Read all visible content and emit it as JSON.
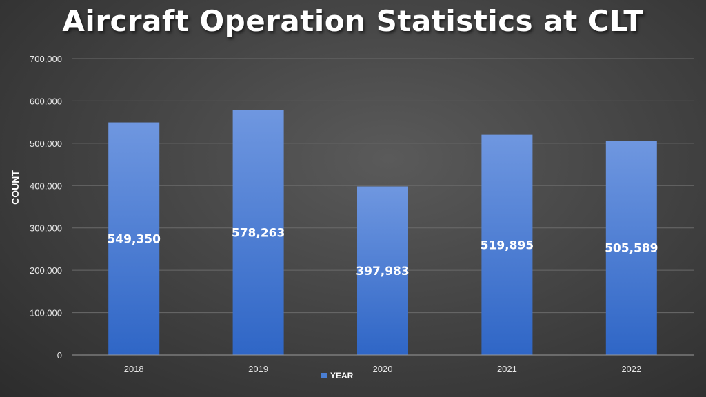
{
  "chart_data": {
    "type": "bar",
    "title": "Aircraft Operation Statistics at CLT",
    "categories": [
      "2018",
      "2019",
      "2020",
      "2021",
      "2022"
    ],
    "series": [
      {
        "name": "YEAR",
        "values": [
          549350,
          578263,
          397983,
          519895,
          505589
        ]
      }
    ],
    "data_labels": [
      "549,350",
      "578,263",
      "397,983",
      "519,895",
      "505,589"
    ],
    "xlabel": "",
    "ylabel": "COUNT",
    "ylim": [
      0,
      700000
    ],
    "yticks": [
      0,
      100000,
      200000,
      300000,
      400000,
      500000,
      600000,
      700000
    ],
    "ytick_labels": [
      "0",
      "100,000",
      "200,000",
      "300,000",
      "400,000",
      "500,000",
      "600,000",
      "700,000"
    ],
    "legend_position": "bottom",
    "grid": true,
    "bar_color": "#4a7fd4",
    "bar_color_top": "#6f97e0",
    "bar_color_bottom": "#2f66c6",
    "grid_color": "#6a6a6a"
  }
}
